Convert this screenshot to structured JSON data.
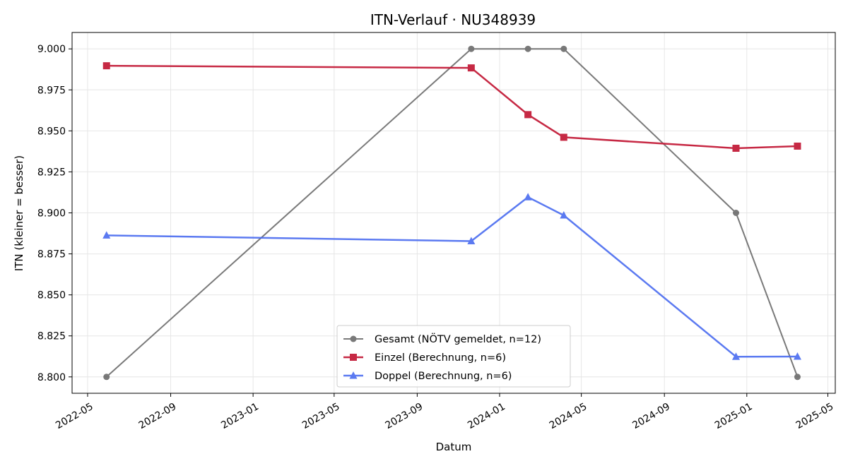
{
  "chart_data": {
    "type": "line",
    "title": "ITN-Verlauf · NU348939",
    "xlabel": "Datum",
    "ylabel": "ITN  (kleiner = besser)",
    "xlim": [
      "2022-04-08",
      "2025-05-12"
    ],
    "ylim": [
      8.79,
      9.01
    ],
    "grid": true,
    "legend_position": "bottom-center",
    "x_ticks": [
      "2022-05-01",
      "2022-09-01",
      "2023-01-01",
      "2023-05-01",
      "2023-09-01",
      "2024-01-01",
      "2024-05-01",
      "2024-09-01",
      "2025-01-01",
      "2025-05-01"
    ],
    "x_tick_labels": [
      "2022-05",
      "2022-09",
      "2023-01",
      "2023-05",
      "2023-09",
      "2024-01",
      "2024-05",
      "2024-09",
      "2025-01",
      "2025-05"
    ],
    "y_ticks": [
      8.8,
      8.825,
      8.85,
      8.875,
      8.9,
      8.925,
      8.95,
      8.975,
      9.0
    ],
    "y_tick_labels": [
      "8.800",
      "8.825",
      "8.850",
      "8.875",
      "8.900",
      "8.925",
      "8.950",
      "8.975",
      "9.000"
    ],
    "series": [
      {
        "name": "Gesamt (NÖTV gemeldet, n=12)",
        "color": "#4d4d4d",
        "marker": "circle",
        "points": [
          {
            "x": "2022-05-29",
            "y": 8.8
          },
          {
            "x": "2023-11-20",
            "y": 9.0
          },
          {
            "x": "2024-02-12",
            "y": 9.0
          },
          {
            "x": "2024-04-05",
            "y": 9.0
          },
          {
            "x": "2024-12-16",
            "y": 8.9
          },
          {
            "x": "2025-03-17",
            "y": 8.8
          }
        ]
      },
      {
        "name": "Einzel (Berechnung, n=6)",
        "color": "#c41e3a",
        "marker": "square",
        "points": [
          {
            "x": "2022-05-29",
            "y": 8.9897
          },
          {
            "x": "2023-11-20",
            "y": 8.9884
          },
          {
            "x": "2024-02-12",
            "y": 8.9599
          },
          {
            "x": "2024-04-05",
            "y": 8.9461
          },
          {
            "x": "2024-12-16",
            "y": 8.9394
          },
          {
            "x": "2025-03-17",
            "y": 8.9407
          }
        ]
      },
      {
        "name": "Doppel (Berechnung, n=6)",
        "color": "#4a6cf0",
        "marker": "triangle",
        "points": [
          {
            "x": "2022-05-29",
            "y": 8.8863
          },
          {
            "x": "2023-11-20",
            "y": 8.8828
          },
          {
            "x": "2024-02-12",
            "y": 8.9096
          },
          {
            "x": "2024-04-05",
            "y": 8.8985
          },
          {
            "x": "2024-12-16",
            "y": 8.8123
          },
          {
            "x": "2025-03-17",
            "y": 8.8124
          }
        ]
      }
    ]
  }
}
